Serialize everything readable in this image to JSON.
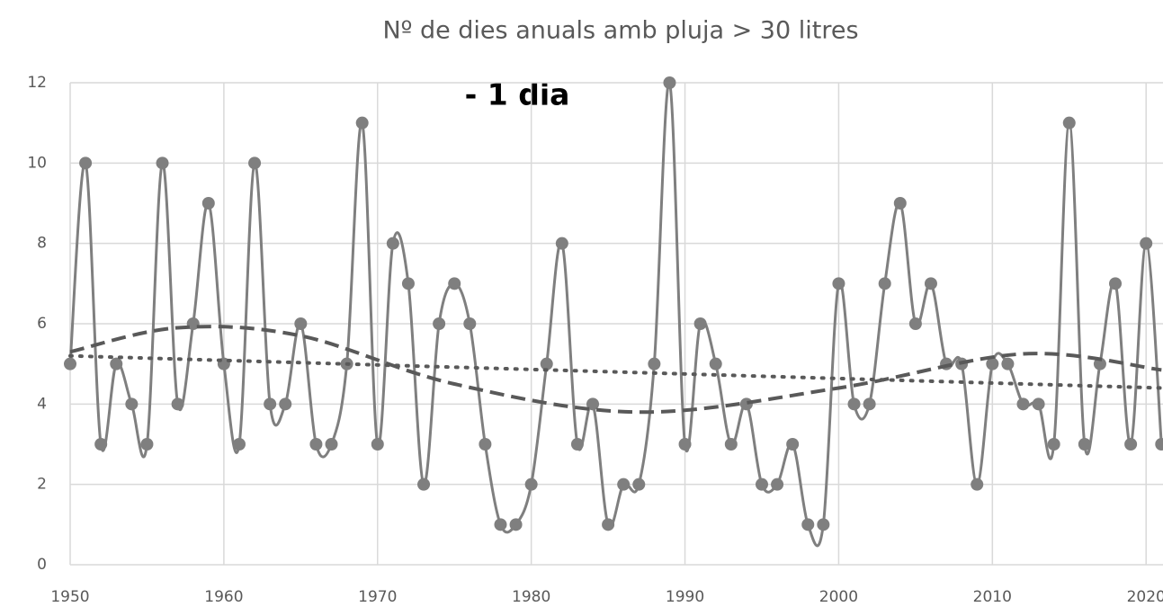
{
  "chart_data": {
    "type": "line",
    "title": "Nº de dies anuals amb pluja > 30 litres",
    "annotation": "- 1 dia",
    "xlim": [
      1950,
      2021.1
    ],
    "xticks": [
      1950,
      1960,
      1970,
      1980,
      1990,
      2000,
      2010,
      2020
    ],
    "ylim": [
      0,
      12
    ],
    "yticks": [
      0,
      2,
      4,
      6,
      8,
      10,
      12
    ],
    "grid": true,
    "series": [
      {
        "color": "#7f7f7f",
        "style": "solid",
        "markers": true,
        "x": [
          1950,
          1951,
          1952,
          1953,
          1954,
          1955,
          1956,
          1957,
          1958,
          1959,
          1960,
          1961,
          1962,
          1963,
          1964,
          1965,
          1966,
          1967,
          1968,
          1969,
          1970,
          1971,
          1972,
          1973,
          1974,
          1975,
          1976,
          1977,
          1978,
          1979,
          1980,
          1981,
          1982,
          1983,
          1984,
          1985,
          1986,
          1987,
          1988,
          1989,
          1990,
          1991,
          1992,
          1993,
          1994,
          1995,
          1996,
          1997,
          1998,
          1999,
          2000,
          2001,
          2002,
          2003,
          2004,
          2005,
          2006,
          2007,
          2008,
          2009,
          2010,
          2011,
          2012,
          2013,
          2014,
          2015,
          2016,
          2017,
          2018,
          2019,
          2020,
          2021
        ],
        "values": [
          5,
          10,
          3,
          5,
          4,
          3,
          10,
          4,
          6,
          9,
          5,
          3,
          10,
          4,
          4,
          6,
          3,
          3,
          5,
          11,
          3,
          8,
          7,
          2,
          6,
          7,
          6,
          3,
          1,
          1,
          2,
          5,
          8,
          3,
          4,
          1,
          2,
          2,
          5,
          12,
          3,
          6,
          5,
          3,
          4,
          2,
          2,
          3,
          1,
          1,
          7,
          4,
          4,
          7,
          9,
          6,
          7,
          5,
          5,
          2,
          5,
          5,
          4,
          4,
          3,
          11,
          3,
          5,
          7,
          3,
          8,
          3
        ]
      },
      {
        "color": "#595959",
        "style": "dotted",
        "markers": false,
        "x": [
          1950,
          2021
        ],
        "values": [
          5.2,
          4.4
        ]
      },
      {
        "color": "#595959",
        "style": "dashed",
        "markers": false,
        "x": [
          1950,
          1957,
          1965,
          1975,
          1987,
          2000,
          2012,
          2021
        ],
        "values": [
          5.3,
          5.9,
          5.7,
          4.5,
          3.8,
          4.4,
          5.25,
          4.85
        ]
      }
    ]
  }
}
